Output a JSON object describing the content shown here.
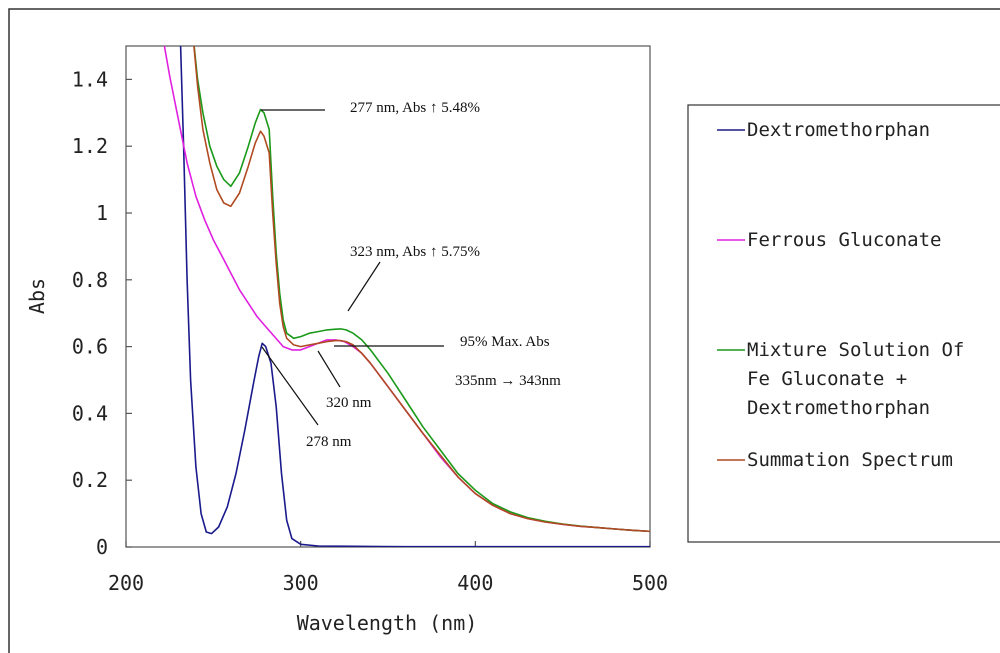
{
  "chart_data": {
    "type": "line",
    "title": "",
    "xlabel": "Wavelength (nm)",
    "ylabel": "Abs",
    "xlim": [
      200,
      500
    ],
    "ylim": [
      0,
      1.5
    ],
    "x_ticks": [
      "200",
      "300",
      "400",
      "500"
    ],
    "y_ticks": [
      "0",
      "0.2",
      "0.4",
      "0.6",
      "0.8",
      "1",
      "1.2",
      "1.4"
    ],
    "grid": false,
    "legend_position": "right",
    "series": [
      {
        "name": "Dextromethorphan",
        "color": "#1a1a8c",
        "points": [
          [
            231,
            1.55
          ],
          [
            233,
            1.2
          ],
          [
            235,
            0.8
          ],
          [
            237,
            0.5
          ],
          [
            240,
            0.24
          ],
          [
            243,
            0.1
          ],
          [
            246,
            0.045
          ],
          [
            249,
            0.04
          ],
          [
            253,
            0.06
          ],
          [
            258,
            0.12
          ],
          [
            263,
            0.22
          ],
          [
            268,
            0.35
          ],
          [
            273,
            0.49
          ],
          [
            276,
            0.57
          ],
          [
            278,
            0.61
          ],
          [
            280,
            0.6
          ],
          [
            283,
            0.55
          ],
          [
            286,
            0.42
          ],
          [
            289,
            0.22
          ],
          [
            292,
            0.08
          ],
          [
            295,
            0.025
          ],
          [
            300,
            0.008
          ],
          [
            310,
            0.003
          ],
          [
            330,
            0.002
          ],
          [
            360,
            0.001
          ],
          [
            400,
            0.001
          ],
          [
            450,
            0.001
          ],
          [
            502,
            0.001
          ]
        ]
      },
      {
        "name": "Ferrous Gluconate",
        "color": "#e020e0",
        "points": [
          [
            222,
            1.5
          ],
          [
            225,
            1.41
          ],
          [
            230,
            1.28
          ],
          [
            235,
            1.15
          ],
          [
            240,
            1.05
          ],
          [
            245,
            0.98
          ],
          [
            250,
            0.92
          ],
          [
            255,
            0.87
          ],
          [
            260,
            0.82
          ],
          [
            265,
            0.77
          ],
          [
            270,
            0.73
          ],
          [
            275,
            0.69
          ],
          [
            280,
            0.66
          ],
          [
            285,
            0.63
          ],
          [
            290,
            0.6
          ],
          [
            295,
            0.59
          ],
          [
            300,
            0.59
          ],
          [
            305,
            0.6
          ],
          [
            310,
            0.61
          ],
          [
            315,
            0.62
          ],
          [
            320,
            0.62
          ],
          [
            325,
            0.615
          ],
          [
            330,
            0.6
          ],
          [
            335,
            0.58
          ],
          [
            340,
            0.55
          ],
          [
            350,
            0.48
          ],
          [
            360,
            0.41
          ],
          [
            370,
            0.34
          ],
          [
            380,
            0.27
          ],
          [
            390,
            0.21
          ],
          [
            400,
            0.16
          ],
          [
            410,
            0.125
          ],
          [
            420,
            0.1
          ],
          [
            430,
            0.085
          ],
          [
            440,
            0.075
          ],
          [
            450,
            0.068
          ],
          [
            460,
            0.062
          ],
          [
            470,
            0.058
          ],
          [
            480,
            0.054
          ],
          [
            490,
            0.05
          ],
          [
            502,
            0.046
          ]
        ]
      },
      {
        "name": "Mixture Solution Of Fe Gluconate + Dextromethorphan",
        "color": "#1a9a1a",
        "points": [
          [
            238,
            1.55
          ],
          [
            241,
            1.4
          ],
          [
            244,
            1.3
          ],
          [
            248,
            1.2
          ],
          [
            252,
            1.14
          ],
          [
            256,
            1.1
          ],
          [
            260,
            1.08
          ],
          [
            265,
            1.12
          ],
          [
            270,
            1.2
          ],
          [
            274,
            1.27
          ],
          [
            277,
            1.31
          ],
          [
            279,
            1.3
          ],
          [
            282,
            1.25
          ],
          [
            284,
            1.05
          ],
          [
            286,
            0.88
          ],
          [
            288,
            0.76
          ],
          [
            290,
            0.68
          ],
          [
            292,
            0.64
          ],
          [
            296,
            0.625
          ],
          [
            300,
            0.63
          ],
          [
            305,
            0.64
          ],
          [
            310,
            0.645
          ],
          [
            315,
            0.65
          ],
          [
            320,
            0.652
          ],
          [
            323,
            0.653
          ],
          [
            326,
            0.65
          ],
          [
            330,
            0.64
          ],
          [
            335,
            0.62
          ],
          [
            340,
            0.59
          ],
          [
            350,
            0.52
          ],
          [
            360,
            0.44
          ],
          [
            370,
            0.36
          ],
          [
            380,
            0.29
          ],
          [
            390,
            0.22
          ],
          [
            400,
            0.17
          ],
          [
            410,
            0.13
          ],
          [
            420,
            0.105
          ],
          [
            430,
            0.088
          ],
          [
            440,
            0.077
          ],
          [
            450,
            0.069
          ],
          [
            460,
            0.063
          ],
          [
            470,
            0.058
          ],
          [
            480,
            0.054
          ],
          [
            490,
            0.05
          ],
          [
            502,
            0.046
          ]
        ]
      },
      {
        "name": "Summation Spectrum",
        "color": "#b04a20",
        "points": [
          [
            238,
            1.55
          ],
          [
            241,
            1.38
          ],
          [
            244,
            1.25
          ],
          [
            248,
            1.15
          ],
          [
            252,
            1.07
          ],
          [
            256,
            1.03
          ],
          [
            260,
            1.02
          ],
          [
            265,
            1.06
          ],
          [
            270,
            1.14
          ],
          [
            274,
            1.21
          ],
          [
            277,
            1.245
          ],
          [
            279,
            1.23
          ],
          [
            282,
            1.18
          ],
          [
            284,
            1.0
          ],
          [
            286,
            0.85
          ],
          [
            288,
            0.73
          ],
          [
            290,
            0.66
          ],
          [
            292,
            0.625
          ],
          [
            296,
            0.605
          ],
          [
            300,
            0.6
          ],
          [
            305,
            0.605
          ],
          [
            310,
            0.61
          ],
          [
            315,
            0.615
          ],
          [
            320,
            0.618
          ],
          [
            323,
            0.618
          ],
          [
            326,
            0.615
          ],
          [
            330,
            0.605
          ],
          [
            335,
            0.58
          ],
          [
            340,
            0.55
          ],
          [
            350,
            0.48
          ],
          [
            360,
            0.41
          ],
          [
            370,
            0.34
          ],
          [
            380,
            0.275
          ],
          [
            390,
            0.21
          ],
          [
            400,
            0.16
          ],
          [
            410,
            0.125
          ],
          [
            420,
            0.1
          ],
          [
            430,
            0.085
          ],
          [
            440,
            0.075
          ],
          [
            450,
            0.068
          ],
          [
            460,
            0.062
          ],
          [
            470,
            0.058
          ],
          [
            480,
            0.054
          ],
          [
            490,
            0.05
          ],
          [
            502,
            0.046
          ]
        ]
      }
    ],
    "annotations": [
      {
        "text": "277 nm, Abs ↑ 5.48%",
        "x": 277,
        "y": 1.31
      },
      {
        "text": "323 nm, Abs ↑ 5.75%",
        "x": 323,
        "y": 0.653
      },
      {
        "text": "95% Max. Abs",
        "x": 335,
        "y": 0.605
      },
      {
        "text": "335nm → 343nm",
        "x": 343,
        "y": 0.54
      },
      {
        "text": "320 nm",
        "x": 320,
        "y": 0.618
      },
      {
        "text": "278 nm",
        "x": 278,
        "y": 0.61
      }
    ],
    "legend": {
      "entries": [
        {
          "lines": [
            "Dextromethorphan"
          ],
          "color": "#1a1a8c"
        },
        {
          "lines": [
            "Ferrous Gluconate"
          ],
          "color": "#e020e0"
        },
        {
          "lines": [
            "Mixture Solution Of",
            "Fe Gluconate +",
            "Dextromethorphan"
          ],
          "color": "#1a9a1a"
        },
        {
          "lines": [
            "Summation Spectrum"
          ],
          "color": "#b04a20"
        }
      ]
    }
  }
}
